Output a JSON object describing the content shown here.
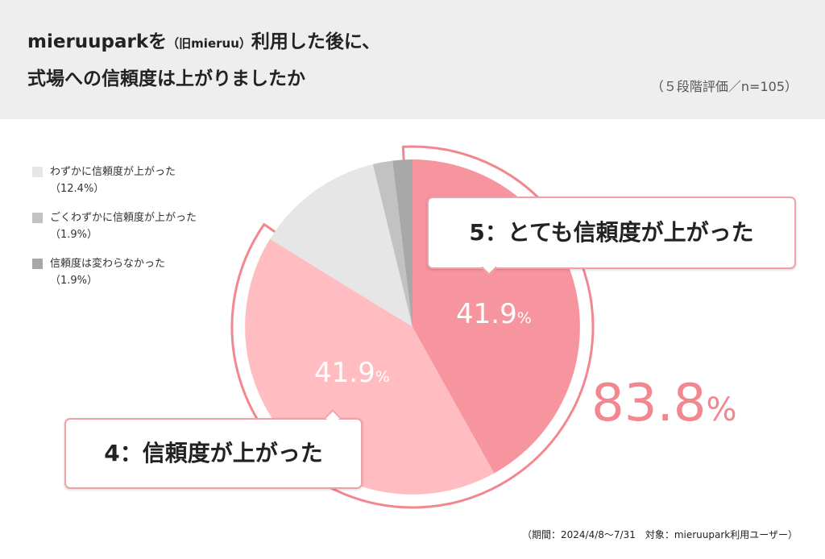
{
  "header": {
    "title_part1": "mieruuparkを",
    "title_small": "（旧mieruu）",
    "title_part2": "利用した後に、",
    "title_line2": "式場への信頼度は上がりましたか",
    "note": "（５段階評価／n=105）"
  },
  "colors": {
    "rating5": "#f7959f",
    "rating4": "#ffbdc1",
    "rating3": "#e6e6e6",
    "rating2": "#c2c2c2",
    "rating1": "#a8a8a8",
    "accent": "#f2878f"
  },
  "chart_data": {
    "type": "pie",
    "title": "mieruuparkを（旧mieruu）利用した後に、式場への信頼度は上がりましたか",
    "subtitle": "（５段階評価／n=105）",
    "slices": [
      {
        "name": "5：とても信頼度が上がった",
        "value": 41.9,
        "label": "41.9",
        "color": "#f7959f"
      },
      {
        "name": "4：信頼度が上がった",
        "value": 41.9,
        "label": "41.9",
        "color": "#ffbdc1"
      },
      {
        "name": "わずかに信頼度が上がった",
        "value": 12.4,
        "color": "#e6e6e6"
      },
      {
        "name": "ごくわずかに信頼度が上がった",
        "value": 1.9,
        "color": "#c2c2c2"
      },
      {
        "name": "信頼度は変わらなかった",
        "value": 1.9,
        "color": "#a8a8a8"
      }
    ],
    "total_positive": "83.8",
    "percent_sign": "%"
  },
  "legend": [
    {
      "label": "わずかに信頼度が上がった",
      "pct": "（12.4%）",
      "color": "#e6e6e6"
    },
    {
      "label": "ごくわずかに信頼度が上がった",
      "pct": "（1.9%）",
      "color": "#c2c2c2"
    },
    {
      "label": "信頼度は変わらなかった",
      "pct": "（1.9%）",
      "color": "#a8a8a8"
    }
  ],
  "callouts": {
    "rating5": "5：とても信頼度が上がった",
    "rating4": "4：信頼度が上がった"
  },
  "footnote": "（期間：2024/4/8〜7/31　対象：mieruupark利用ユーザー）"
}
